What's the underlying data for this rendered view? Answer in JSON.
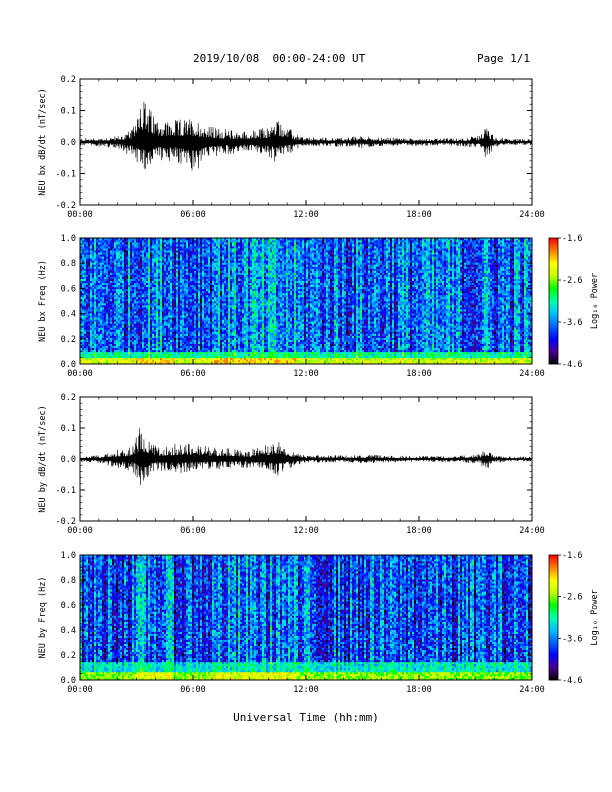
{
  "header": {
    "title": "2019/10/08  00:00-24:00 UT",
    "page": "Page 1/1"
  },
  "xaxis": {
    "label": "Universal Time (hh:mm)",
    "ticks": [
      "00:00",
      "06:00",
      "12:00",
      "18:00",
      "24:00"
    ],
    "range_hours": [
      0,
      24
    ]
  },
  "colorscale": {
    "colors": [
      "#000000",
      "#4a0090",
      "#0000ff",
      "#0060ff",
      "#00c0ff",
      "#00ffb0",
      "#00ff00",
      "#c0ff00",
      "#ffff00",
      "#ff8000",
      "#ff0000"
    ]
  },
  "chart_data": [
    {
      "type": "line",
      "ylabel": "NEU bx dB/dt (nT/sec)",
      "ylim": [
        -0.2,
        0.2
      ],
      "yticks": [
        "0.2",
        "0.1",
        "0.0",
        "-0.1",
        "-0.2"
      ],
      "yticks_values": [
        0.2,
        0.1,
        0.0,
        -0.1,
        -0.2
      ],
      "series_color": "#000000",
      "envelope": {
        "x_hours": [
          0,
          1,
          2,
          2.8,
          3.2,
          3.5,
          3.8,
          4.2,
          5.0,
          6.0,
          7.0,
          8.0,
          9.0,
          10.0,
          10.4,
          10.7,
          11.0,
          11.5,
          12.0,
          14.0,
          15.0,
          16.0,
          18.0,
          20.0,
          21.2,
          21.5,
          21.7,
          22.0,
          23.0,
          24.0
        ],
        "upper": [
          0.012,
          0.014,
          0.02,
          0.04,
          0.18,
          0.13,
          0.1,
          0.08,
          0.07,
          0.08,
          0.05,
          0.04,
          0.035,
          0.05,
          0.08,
          0.07,
          0.05,
          0.025,
          0.015,
          0.015,
          0.02,
          0.015,
          0.012,
          0.012,
          0.02,
          0.05,
          0.045,
          0.015,
          0.01,
          0.01
        ],
        "lower": [
          -0.012,
          -0.014,
          -0.02,
          -0.05,
          -0.1,
          -0.09,
          -0.07,
          -0.06,
          -0.06,
          -0.11,
          -0.05,
          -0.04,
          -0.03,
          -0.05,
          -0.07,
          -0.05,
          -0.04,
          -0.025,
          -0.015,
          -0.015,
          -0.02,
          -0.015,
          -0.012,
          -0.012,
          -0.02,
          -0.06,
          -0.05,
          -0.015,
          -0.01,
          -0.01
        ]
      }
    },
    {
      "type": "heatmap",
      "ylabel": "NEU bx Freq (Hz)",
      "ylim": [
        0.0,
        1.0
      ],
      "yticks": [
        "1.0",
        "0.8",
        "0.6",
        "0.4",
        "0.2",
        "0.0"
      ],
      "yticks_values": [
        1.0,
        0.8,
        0.6,
        0.4,
        0.2,
        0.0
      ],
      "colorbar_label": "Log₁₀ Power",
      "colorbar_range": [
        -4.6,
        -1.6
      ],
      "colorbar_ticks": [
        "-1.6",
        "-2.6",
        "-3.6",
        "-4.6"
      ],
      "colorbar_ticks_values": [
        -1.6,
        -2.6,
        -3.6,
        -4.6
      ],
      "background_level": -3.7,
      "low_freq_band": {
        "freq_max": 0.05,
        "level": -2.4
      },
      "enhanced_hours": [
        [
          3,
          5
        ],
        [
          7,
          11.5
        ]
      ]
    },
    {
      "type": "line",
      "ylabel": "NEU by dB/dt (nT/sec)",
      "ylim": [
        -0.2,
        0.2
      ],
      "yticks": [
        "0.2",
        "0.1",
        "0.0",
        "-0.1",
        "-0.2"
      ],
      "yticks_values": [
        0.2,
        0.1,
        0.0,
        -0.1,
        -0.2
      ],
      "series_color": "#000000",
      "envelope": {
        "x_hours": [
          0,
          1,
          2,
          2.8,
          3.2,
          3.5,
          3.8,
          4.2,
          5.0,
          6.0,
          7.0,
          8.0,
          9.0,
          10.0,
          10.4,
          10.7,
          11.0,
          11.5,
          12.0,
          14.0,
          15.0,
          16.0,
          18.0,
          20.0,
          21.2,
          21.5,
          21.7,
          22.0,
          23.0,
          24.0
        ],
        "upper": [
          0.01,
          0.012,
          0.03,
          0.04,
          0.11,
          0.08,
          0.05,
          0.04,
          0.05,
          0.05,
          0.04,
          0.035,
          0.03,
          0.05,
          0.07,
          0.06,
          0.04,
          0.02,
          0.012,
          0.012,
          0.015,
          0.012,
          0.01,
          0.01,
          0.015,
          0.03,
          0.03,
          0.012,
          0.008,
          0.008
        ],
        "lower": [
          -0.01,
          -0.012,
          -0.03,
          -0.04,
          -0.09,
          -0.07,
          -0.05,
          -0.04,
          -0.05,
          -0.04,
          -0.035,
          -0.03,
          -0.03,
          -0.04,
          -0.06,
          -0.05,
          -0.035,
          -0.02,
          -0.012,
          -0.012,
          -0.015,
          -0.012,
          -0.01,
          -0.01,
          -0.015,
          -0.035,
          -0.03,
          -0.012,
          -0.008,
          -0.008
        ]
      }
    },
    {
      "type": "heatmap",
      "ylabel": "NEU by Freq (Hz)",
      "ylim": [
        0.0,
        1.0
      ],
      "yticks": [
        "1.0",
        "0.8",
        "0.6",
        "0.4",
        "0.2",
        "0.0"
      ],
      "yticks_values": [
        1.0,
        0.8,
        0.6,
        0.4,
        0.2,
        0.0
      ],
      "colorbar_label": "Log₁₀ Power",
      "colorbar_range": [
        -4.6,
        -1.6
      ],
      "colorbar_ticks": [
        "-1.6",
        "-2.6",
        "-3.6",
        "-4.6"
      ],
      "colorbar_ticks_values": [
        -1.6,
        -2.6,
        -3.6,
        -4.6
      ],
      "background_level": -3.8,
      "low_freq_band": {
        "freq_max": 0.07,
        "level": -2.6
      },
      "enhanced_hours": [
        [
          3,
          5
        ],
        [
          7,
          11.5
        ]
      ]
    }
  ]
}
